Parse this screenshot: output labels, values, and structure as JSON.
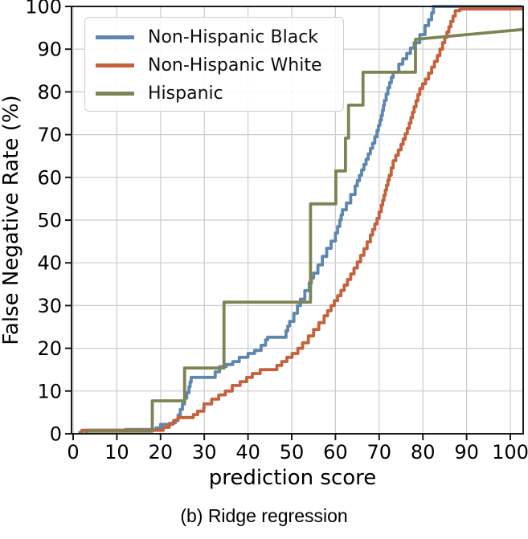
{
  "caption": "(b) Ridge regression",
  "colors": {
    "grid": "#cccccc",
    "spine": "#1a1a1a",
    "background": "#ffffff"
  },
  "chart_data": {
    "type": "line",
    "subtype": "step-cdf",
    "title": "",
    "xlabel": "prediction score",
    "ylabel": "False Negative Rate (%)",
    "xlim": [
      0,
      103
    ],
    "ylim": [
      0,
      100
    ],
    "x_ticks": [
      0,
      10,
      20,
      30,
      40,
      50,
      60,
      70,
      80,
      90,
      100
    ],
    "y_ticks": [
      0,
      10,
      20,
      30,
      40,
      50,
      60,
      70,
      80,
      90,
      100
    ],
    "grid": true,
    "legend_position": "upper left",
    "series": [
      {
        "name": "Non-Hispanic Black",
        "color": "#5E87AE",
        "interp": "steps",
        "points": [
          [
            2.5,
            0.4
          ],
          [
            3,
            0.8
          ],
          [
            11,
            0.8
          ],
          [
            12,
            1.0
          ],
          [
            17.5,
            1.0
          ],
          [
            19,
            1.4
          ],
          [
            20,
            2.2
          ],
          [
            22.8,
            2.6
          ],
          [
            23.4,
            3.2
          ],
          [
            24,
            4.4
          ],
          [
            24.5,
            5.7
          ],
          [
            25,
            7.0
          ],
          [
            25.5,
            8.3
          ],
          [
            26,
            9.6
          ],
          [
            26.5,
            11.0
          ],
          [
            27,
            13.2
          ],
          [
            31.5,
            13.2
          ],
          [
            32.5,
            14.5
          ],
          [
            33.5,
            15.7
          ],
          [
            35,
            16.2
          ],
          [
            36.5,
            16.9
          ],
          [
            38,
            17.9
          ],
          [
            40,
            18.8
          ],
          [
            41.5,
            19.5
          ],
          [
            43,
            20.7
          ],
          [
            44,
            22.0
          ],
          [
            44.5,
            22.6
          ],
          [
            48,
            22.6
          ],
          [
            48.7,
            24.1
          ],
          [
            49.5,
            26.3
          ],
          [
            50.5,
            28.2
          ],
          [
            51.3,
            30.0
          ],
          [
            52,
            31.5
          ],
          [
            53,
            33.5
          ],
          [
            54,
            35.3
          ],
          [
            55,
            37.6
          ],
          [
            56,
            39.5
          ],
          [
            57,
            41.5
          ],
          [
            58,
            43.4
          ],
          [
            59,
            45.1
          ],
          [
            60,
            47.0
          ],
          [
            61,
            50.0
          ],
          [
            61.6,
            52.4
          ],
          [
            62.5,
            54.0
          ],
          [
            63.5,
            56.0
          ],
          [
            64.5,
            58.0
          ],
          [
            65.5,
            60.5
          ],
          [
            66.5,
            63.0
          ],
          [
            67.5,
            65.5
          ],
          [
            68.5,
            68.0
          ],
          [
            69.5,
            71.0
          ],
          [
            70.5,
            74.5
          ],
          [
            71.2,
            78.0
          ],
          [
            72,
            81.0
          ],
          [
            73.2,
            84.6
          ],
          [
            74.5,
            86.5
          ],
          [
            76.3,
            89.0
          ],
          [
            78,
            91.5
          ],
          [
            79.3,
            93.4
          ],
          [
            80.5,
            95.5
          ],
          [
            81.3,
            96.9
          ],
          [
            82,
            98.5
          ],
          [
            82.4,
            100
          ],
          [
            102.8,
            100
          ]
        ]
      },
      {
        "name": "Non-Hispanic White",
        "color": "#C5613B",
        "interp": "steps",
        "points": [
          [
            1.2,
            0.3
          ],
          [
            2,
            0.8
          ],
          [
            19.5,
            0.8
          ],
          [
            20.6,
            1.5
          ],
          [
            22,
            2.4
          ],
          [
            23,
            3.1
          ],
          [
            24,
            3.8
          ],
          [
            26.7,
            3.8
          ],
          [
            27.5,
            4.5
          ],
          [
            28.5,
            5.3
          ],
          [
            29.9,
            7.0
          ],
          [
            31.7,
            8.1
          ],
          [
            33.3,
            9.1
          ],
          [
            34.8,
            10.0
          ],
          [
            36.4,
            11.3
          ],
          [
            38.2,
            12.2
          ],
          [
            39.7,
            13.2
          ],
          [
            41,
            14.1
          ],
          [
            42.8,
            15.0
          ],
          [
            45.6,
            15.0
          ],
          [
            46.6,
            16.0
          ],
          [
            47.7,
            16.9
          ],
          [
            48.9,
            17.9
          ],
          [
            50.1,
            18.8
          ],
          [
            51.4,
            20.0
          ],
          [
            52.5,
            21.3
          ],
          [
            53.8,
            22.9
          ],
          [
            55,
            24.4
          ],
          [
            56.2,
            26.0
          ],
          [
            57.4,
            27.6
          ],
          [
            59,
            30.0
          ],
          [
            60.5,
            32.3
          ],
          [
            62,
            34.8
          ],
          [
            63.5,
            37.4
          ],
          [
            65,
            40.2
          ],
          [
            66.5,
            43.3
          ],
          [
            68,
            46.5
          ],
          [
            69.5,
            50.4
          ],
          [
            70.5,
            53.5
          ],
          [
            71.4,
            57.0
          ],
          [
            72.3,
            60.5
          ],
          [
            73.2,
            63.9
          ],
          [
            75,
            67.7
          ],
          [
            76.9,
            72.7
          ],
          [
            78,
            76.5
          ],
          [
            79.3,
            80.8
          ],
          [
            80.6,
            83.0
          ],
          [
            82,
            85.8
          ],
          [
            83.3,
            88.5
          ],
          [
            84.5,
            91.5
          ],
          [
            85.5,
            94.0
          ],
          [
            86.4,
            96.5
          ],
          [
            87.4,
            99.0
          ],
          [
            88.5,
            99.4
          ],
          [
            102.8,
            99.4
          ]
        ]
      },
      {
        "name": "Hispanic",
        "color": "#7E8355",
        "interp": "linear",
        "points": [
          [
            3,
            0.6
          ],
          [
            18.1,
            0.6
          ],
          [
            18.1,
            7.7
          ],
          [
            25.5,
            7.7
          ],
          [
            25.5,
            15.4
          ],
          [
            34.5,
            15.4
          ],
          [
            34.5,
            30.8
          ],
          [
            54.3,
            30.8
          ],
          [
            54.3,
            53.8
          ],
          [
            60.1,
            53.8
          ],
          [
            60.1,
            61.5
          ],
          [
            62.3,
            61.5
          ],
          [
            62.3,
            69.2
          ],
          [
            63.0,
            69.2
          ],
          [
            63.0,
            76.9
          ],
          [
            66.3,
            76.9
          ],
          [
            66.3,
            84.6
          ],
          [
            78.3,
            84.6
          ],
          [
            78.3,
            92.3
          ],
          [
            102.8,
            94.6
          ]
        ]
      }
    ]
  }
}
